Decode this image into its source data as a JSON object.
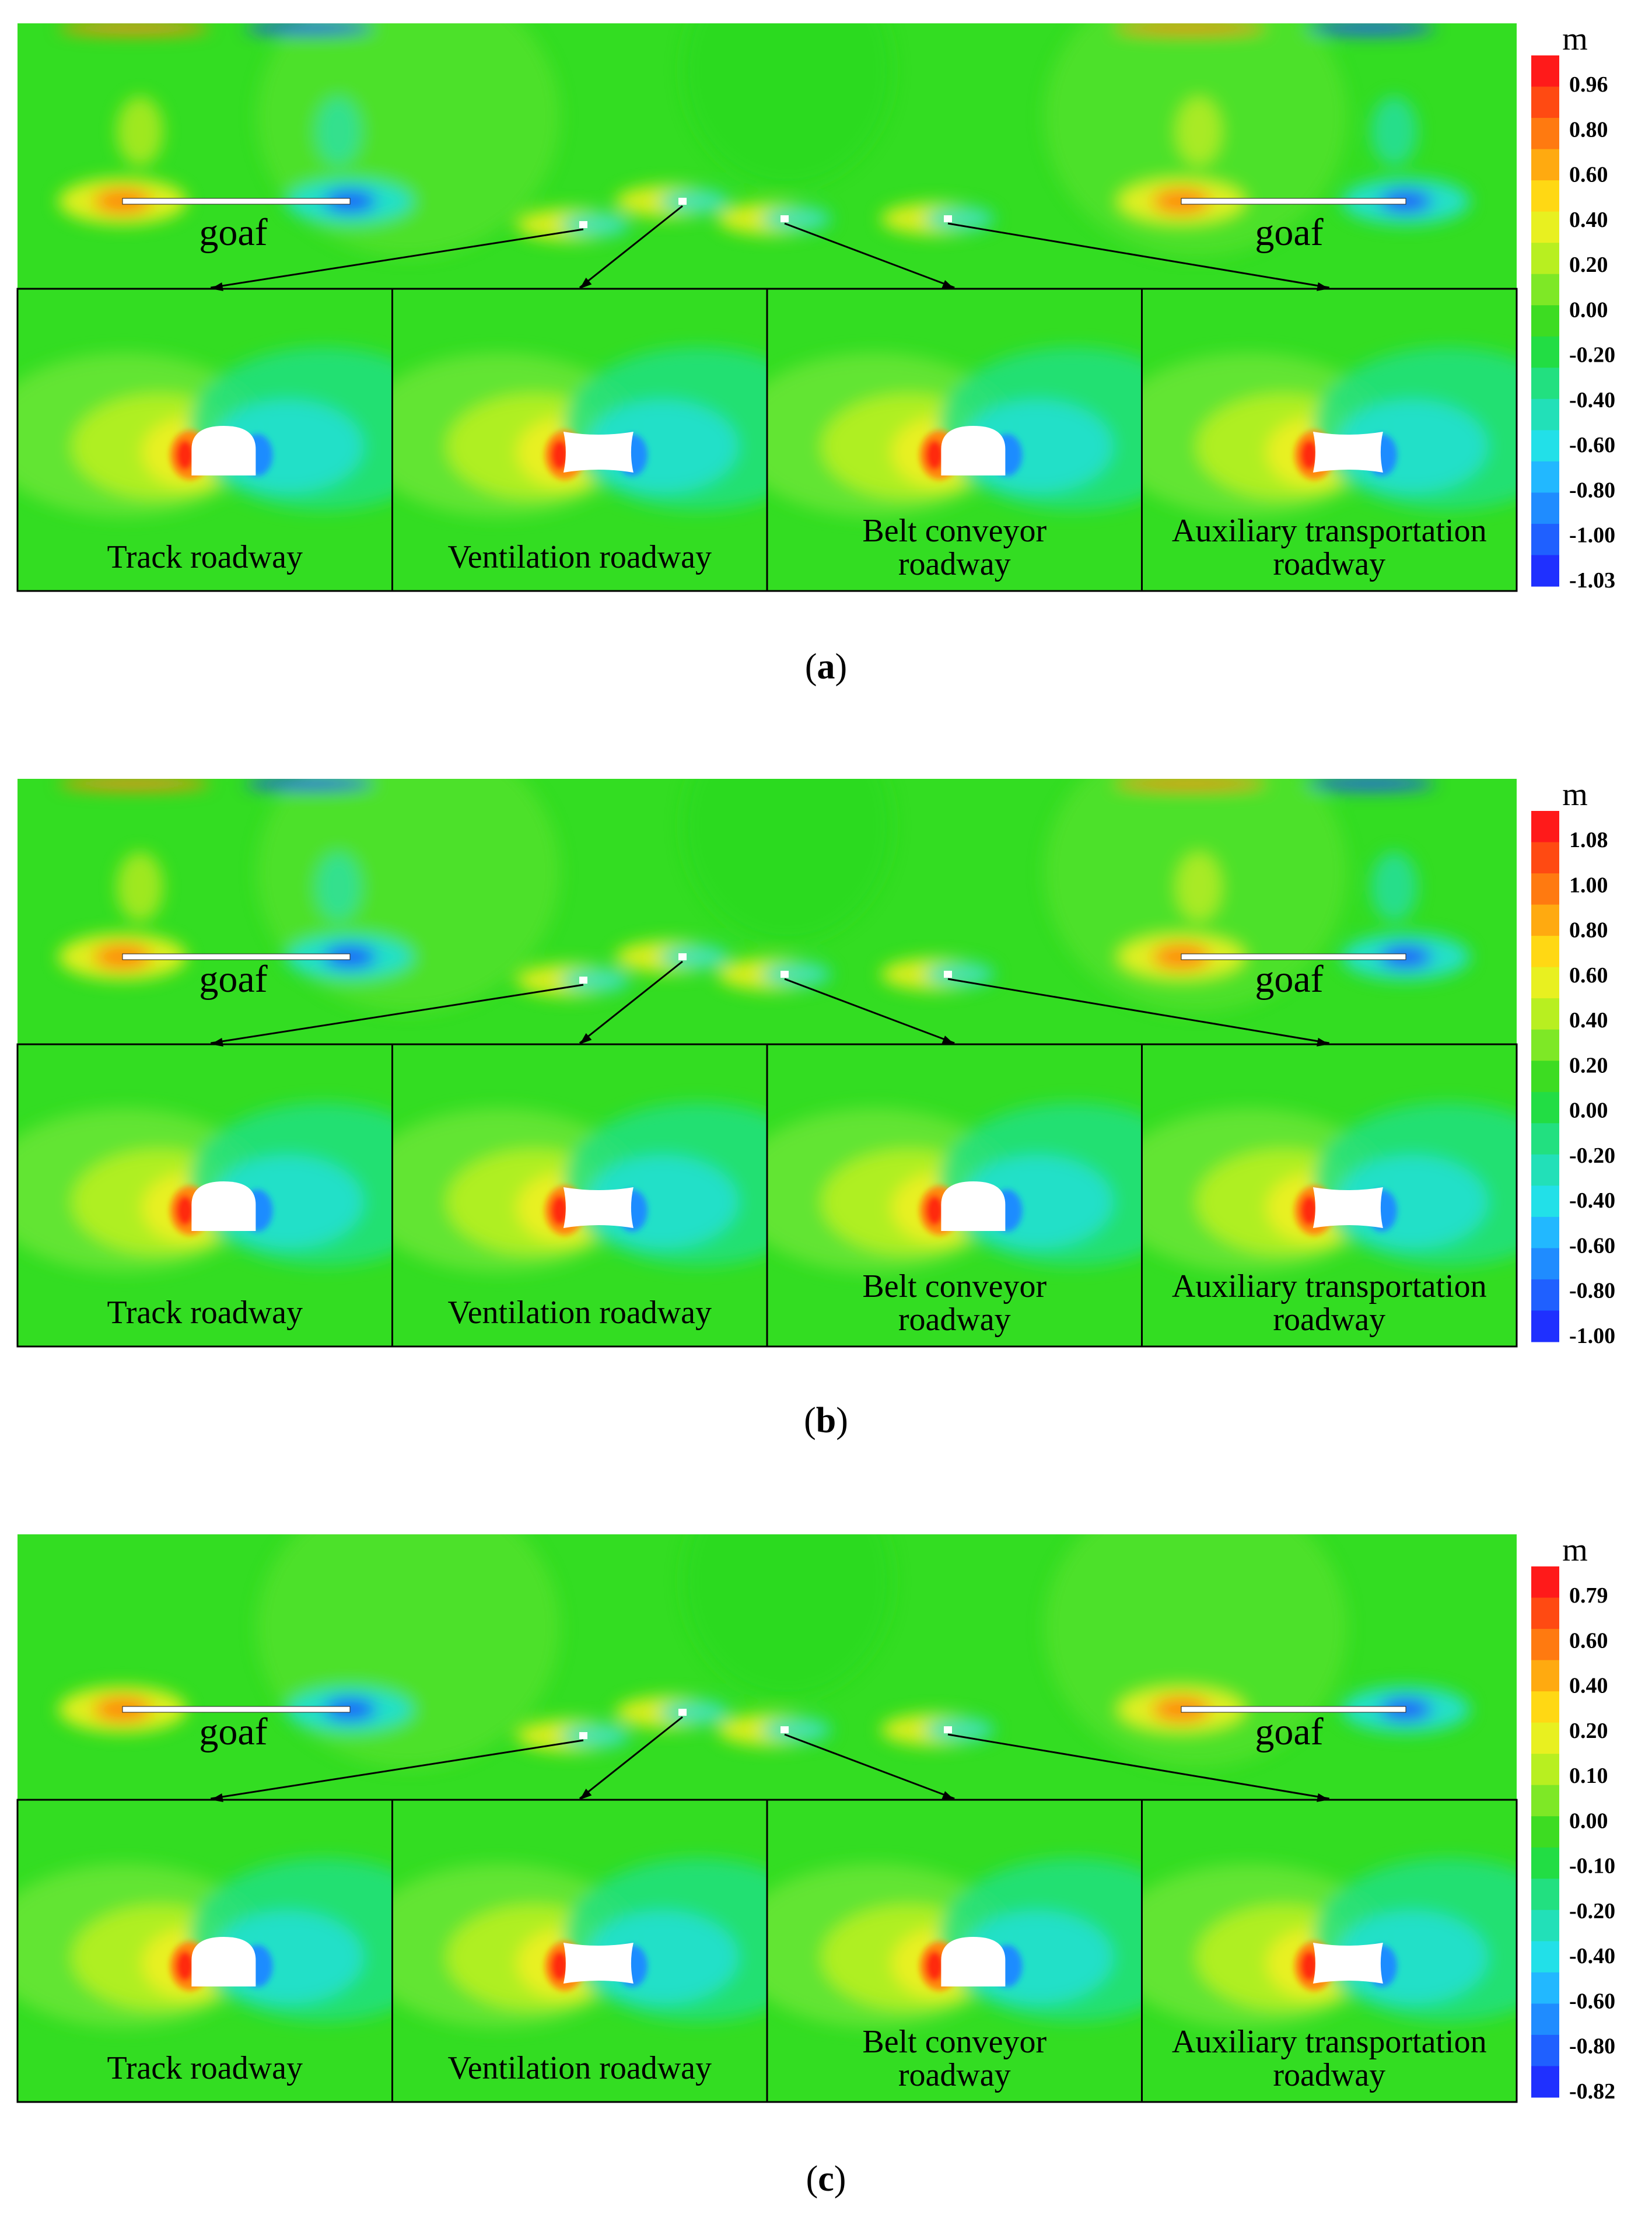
{
  "figures": [
    {
      "caption_letter": "a",
      "unit": "m",
      "colorbar_ticks": [
        "0.96",
        "0.80",
        "0.60",
        "0.40",
        "0.20",
        "0.00",
        "-0.20",
        "-0.40",
        "-0.60",
        "-0.80",
        "-1.00",
        "-1.03"
      ],
      "goaf_labels": [
        "goaf",
        "goaf"
      ],
      "panels": [
        {
          "label_lines": [
            "Track roadway"
          ],
          "shape": "arch"
        },
        {
          "label_lines": [
            "Ventilation roadway"
          ],
          "shape": "rect"
        },
        {
          "label_lines": [
            "Belt conveyor",
            "roadway"
          ],
          "shape": "arch"
        },
        {
          "label_lines": [
            "Auxiliary transportation",
            "roadway"
          ],
          "shape": "rect"
        }
      ]
    },
    {
      "caption_letter": "b",
      "unit": "m",
      "colorbar_ticks": [
        "1.08",
        "1.00",
        "0.80",
        "0.60",
        "0.40",
        "0.20",
        "0.00",
        "-0.20",
        "-0.40",
        "-0.60",
        "-0.80",
        "-1.00"
      ],
      "goaf_labels": [
        "goaf",
        "goaf"
      ],
      "panels": [
        {
          "label_lines": [
            "Track roadway"
          ],
          "shape": "arch"
        },
        {
          "label_lines": [
            "Ventilation roadway"
          ],
          "shape": "rect"
        },
        {
          "label_lines": [
            "Belt conveyor",
            "roadway"
          ],
          "shape": "arch"
        },
        {
          "label_lines": [
            "Auxiliary transportation",
            "roadway"
          ],
          "shape": "rect"
        }
      ]
    },
    {
      "caption_letter": "c",
      "unit": "m",
      "colorbar_ticks": [
        "0.79",
        "0.60",
        "0.40",
        "0.20",
        "0.10",
        "0.00",
        "-0.10",
        "-0.20",
        "-0.40",
        "-0.60",
        "-0.80",
        "-0.82"
      ],
      "goaf_labels": [
        "goaf",
        "goaf"
      ],
      "panels": [
        {
          "label_lines": [
            "Track roadway"
          ],
          "shape": "arch"
        },
        {
          "label_lines": [
            "Ventilation roadway"
          ],
          "shape": "rect"
        },
        {
          "label_lines": [
            "Belt conveyor",
            "roadway"
          ],
          "shape": "arch"
        },
        {
          "label_lines": [
            "Auxiliary transportation",
            "roadway"
          ],
          "shape": "rect"
        }
      ]
    }
  ],
  "colors": {
    "field": "#33dd22",
    "field_light": "#66e633",
    "yellow": "#e8f020",
    "orange": "#ff8a10",
    "red": "#ff2a10",
    "cyan": "#22e0d0",
    "blue": "#1f50ff",
    "frame": "#000000"
  },
  "colorbar_colors": [
    "#ff1a1a",
    "#ff4a12",
    "#ff7a10",
    "#ffaa10",
    "#ffd814",
    "#e8f020",
    "#b8ef20",
    "#7ee826",
    "#3ddc22",
    "#22dd44",
    "#22e080",
    "#22e0b8",
    "#22e0e8",
    "#22b8ff",
    "#1f8cff",
    "#1f60ff",
    "#1f30ff"
  ]
}
